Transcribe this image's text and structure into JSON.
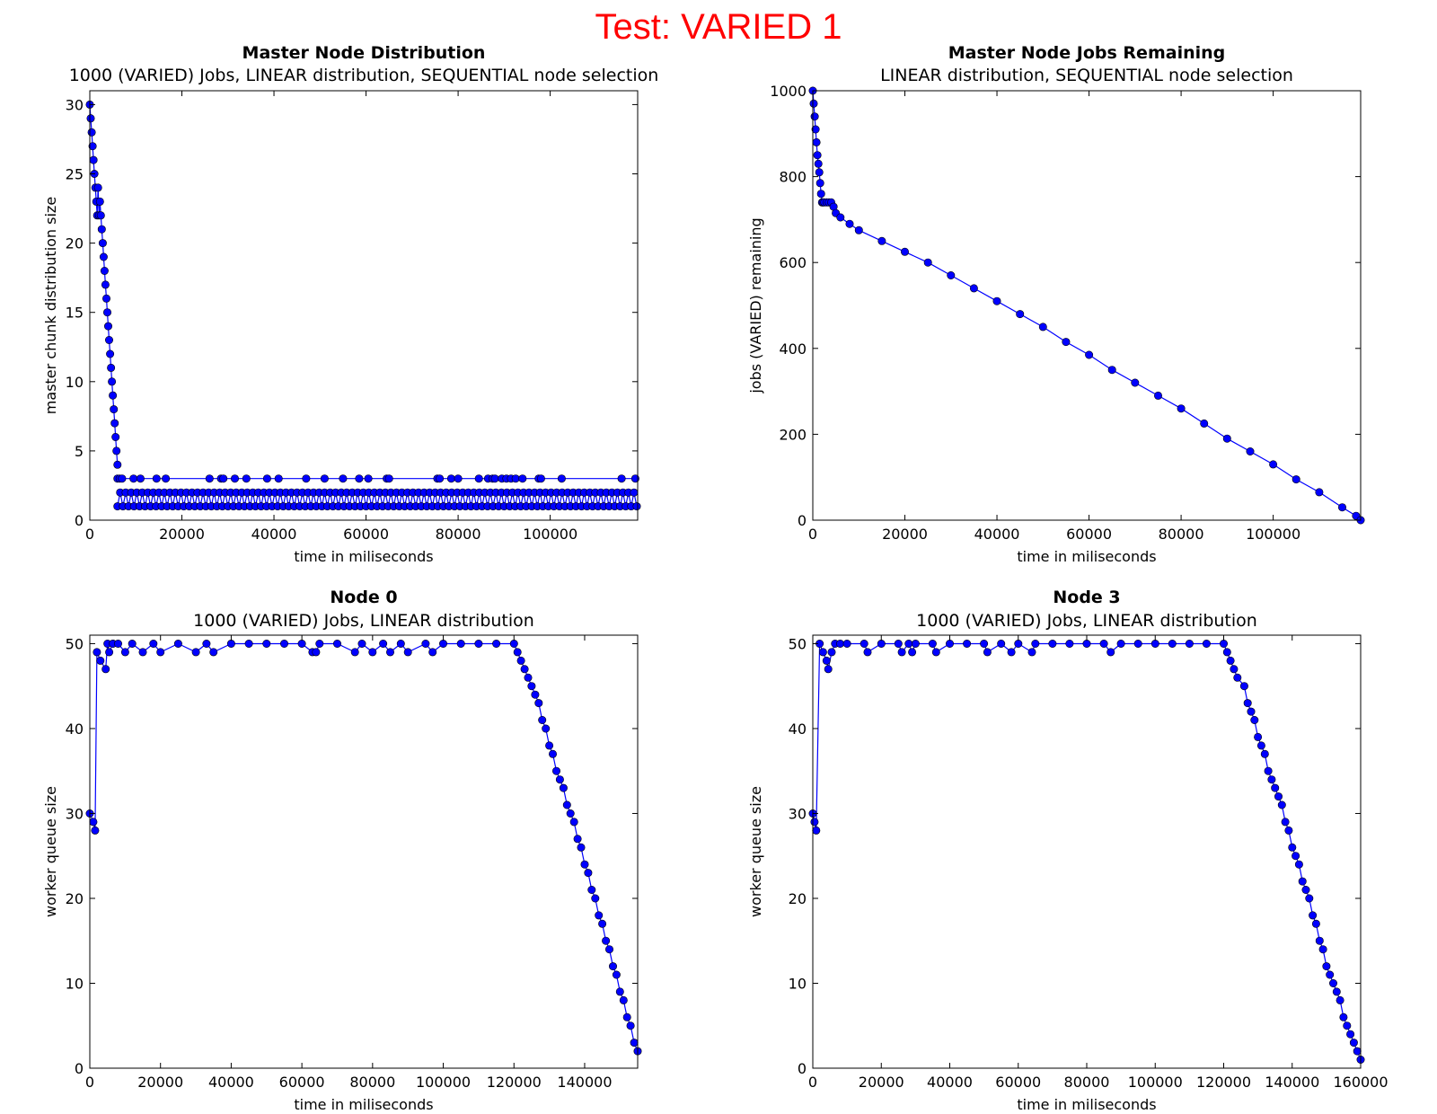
{
  "figure": {
    "suptitle": "Test: VARIED 1",
    "suptitle_color": "#ff0000",
    "marker_color": "#0000ff"
  },
  "chart_data": [
    {
      "type": "line",
      "title": "Master Node Distribution",
      "subtitle": "1000 (VARIED) Jobs, LINEAR distribution, SEQUENTIAL node selection",
      "xlabel": "time in miliseconds",
      "ylabel": "master chunk distribution size",
      "xlim": [
        0,
        119000
      ],
      "ylim": [
        0,
        31
      ],
      "xticks": [
        0,
        20000,
        40000,
        60000,
        80000,
        100000
      ],
      "yticks": [
        0,
        5,
        10,
        15,
        20,
        25,
        30
      ],
      "series": [
        {
          "marker": "o",
          "x": [
            0,
            200,
            400,
            600,
            800,
            1000,
            1200,
            1400,
            1600,
            1800,
            2000,
            2200,
            2400,
            2600,
            2800,
            3000,
            3200,
            3400,
            3600,
            3800,
            4000,
            4200,
            4400,
            4600,
            4800,
            5000,
            5200,
            5400,
            5600,
            5800,
            6000
          ],
          "y": [
            30,
            29,
            28,
            27,
            26,
            25,
            24,
            23,
            22,
            24,
            22,
            23,
            22,
            21,
            20,
            19,
            18,
            17,
            16,
            15,
            14,
            13,
            12,
            11,
            10,
            9,
            8,
            7,
            6,
            5,
            4
          ]
        },
        {
          "marker": "o",
          "x": [
            6000,
            6500,
            7000,
            9500,
            11000,
            14500,
            16500,
            26000,
            28500,
            29000,
            31500,
            34000,
            38500,
            41000,
            47000,
            51000,
            55000,
            58500,
            60500,
            64500,
            65000,
            75500,
            76000,
            78500,
            80000,
            84500,
            86500,
            87500,
            88000,
            89500,
            90500,
            91500,
            92500,
            94000,
            97500,
            98000,
            102500,
            115500,
            118500
          ],
          "y": [
            3,
            3,
            3,
            3,
            3,
            3,
            3,
            3,
            3,
            3,
            3,
            3,
            3,
            3,
            3,
            3,
            3,
            3,
            3,
            3,
            3,
            3,
            3,
            3,
            3,
            3,
            3,
            3,
            3,
            3,
            3,
            3,
            3,
            3,
            3,
            3,
            3,
            3,
            3
          ]
        },
        {
          "marker": "o",
          "note_level": "dense band of points at 1 and 2 from 6000 to 119000",
          "x_start": 6000,
          "x_end": 119000,
          "step": 600,
          "levels": [
            1,
            2
          ]
        }
      ]
    },
    {
      "type": "line",
      "title": "Master Node Jobs Remaining",
      "subtitle": "LINEAR distribution, SEQUENTIAL node selection",
      "xlabel": "time in miliseconds",
      "ylabel": "jobs (VARIED) remaining",
      "xlim": [
        0,
        119000
      ],
      "ylim": [
        0,
        1000
      ],
      "xticks": [
        0,
        20000,
        40000,
        60000,
        80000,
        100000
      ],
      "yticks": [
        0,
        200,
        400,
        600,
        800,
        1000
      ],
      "series": [
        {
          "marker": "o",
          "x": [
            0,
            200,
            400,
            600,
            800,
            1000,
            1200,
            1400,
            1600,
            1800,
            2000,
            2200,
            2500,
            3000,
            3500,
            4000,
            4500,
            5000,
            6000,
            8000,
            10000,
            15000,
            20000,
            25000,
            30000,
            35000,
            40000,
            45000,
            50000,
            55000,
            60000,
            65000,
            70000,
            75000,
            80000,
            85000,
            90000,
            95000,
            100000,
            105000,
            110000,
            115000,
            118000,
            119000
          ],
          "y": [
            1000,
            970,
            940,
            910,
            880,
            850,
            830,
            810,
            785,
            760,
            740,
            740,
            740,
            740,
            740,
            740,
            730,
            715,
            705,
            690,
            675,
            650,
            625,
            600,
            570,
            540,
            510,
            480,
            450,
            415,
            385,
            350,
            320,
            290,
            260,
            225,
            190,
            160,
            130,
            95,
            65,
            30,
            10,
            0
          ]
        }
      ]
    },
    {
      "type": "line",
      "title": "Node 0",
      "subtitle": "1000 (VARIED) Jobs, LINEAR distribution",
      "xlabel": "time in miliseconds",
      "ylabel": "worker queue size",
      "xlim": [
        0,
        155000
      ],
      "ylim": [
        0,
        51
      ],
      "xticks": [
        0,
        20000,
        40000,
        60000,
        80000,
        100000,
        120000,
        140000
      ],
      "yticks": [
        0,
        10,
        20,
        30,
        40,
        50
      ],
      "series": [
        {
          "marker": "o",
          "x": [
            0,
            1000,
            1500,
            2000,
            3000,
            4500,
            5000,
            5500,
            6500,
            8000,
            10000,
            12000,
            15000,
            18000,
            20000,
            25000,
            30000,
            33000,
            35000,
            40000,
            45000,
            50000,
            55000,
            60000,
            63000,
            64000,
            65000,
            70000,
            75000,
            77000,
            80000,
            83000,
            85000,
            88000,
            90000,
            95000,
            97000,
            100000,
            105000,
            110000,
            115000,
            120000,
            121000,
            122000,
            123000,
            124000,
            125000,
            126000,
            127000,
            128000,
            129000,
            130000,
            131000,
            132000,
            133000,
            134000,
            135000,
            136000,
            137000,
            138000,
            139000,
            140000,
            141000,
            142000,
            143000,
            144000,
            145000,
            146000,
            147000,
            148000,
            149000,
            150000,
            151000,
            152000,
            153000,
            154000,
            155000
          ],
          "y": [
            30,
            29,
            28,
            49,
            48,
            47,
            50,
            49,
            50,
            50,
            49,
            50,
            49,
            50,
            49,
            50,
            49,
            50,
            49,
            50,
            50,
            50,
            50,
            50,
            49,
            49,
            50,
            50,
            49,
            50,
            49,
            50,
            49,
            50,
            49,
            50,
            49,
            50,
            50,
            50,
            50,
            50,
            49,
            48,
            47,
            46,
            45,
            44,
            43,
            41,
            40,
            38,
            37,
            35,
            34,
            33,
            31,
            30,
            29,
            27,
            26,
            24,
            23,
            21,
            20,
            18,
            17,
            15,
            14,
            12,
            11,
            9,
            8,
            6,
            5,
            3,
            2
          ]
        }
      ]
    },
    {
      "type": "line",
      "title": "Node 3",
      "subtitle": "1000 (VARIED) Jobs, LINEAR distribution",
      "xlabel": "time in miliseconds",
      "ylabel": "worker queue size",
      "xlim": [
        0,
        160000
      ],
      "ylim": [
        0,
        51
      ],
      "xticks": [
        0,
        20000,
        40000,
        60000,
        80000,
        100000,
        120000,
        140000,
        160000
      ],
      "yticks": [
        0,
        10,
        20,
        30,
        40,
        50
      ],
      "series": [
        {
          "marker": "o",
          "x": [
            0,
            500,
            1000,
            2000,
            3000,
            4000,
            4500,
            5500,
            6500,
            8000,
            10000,
            15000,
            16000,
            20000,
            25000,
            26000,
            28000,
            29000,
            30000,
            35000,
            36000,
            40000,
            45000,
            50000,
            51000,
            55000,
            58000,
            60000,
            64000,
            65000,
            70000,
            75000,
            80000,
            85000,
            87000,
            90000,
            95000,
            100000,
            105000,
            110000,
            115000,
            120000,
            121000,
            122000,
            123000,
            124000,
            126000,
            127000,
            128000,
            129000,
            130000,
            131000,
            132000,
            133000,
            134000,
            135000,
            136000,
            137000,
            138000,
            139000,
            140000,
            141000,
            142000,
            143000,
            144000,
            145000,
            146000,
            147000,
            148000,
            149000,
            150000,
            151000,
            152000,
            153000,
            154000,
            155000,
            156000,
            157000,
            158000,
            159000,
            160000
          ],
          "y": [
            30,
            29,
            28,
            50,
            49,
            48,
            47,
            49,
            50,
            50,
            50,
            50,
            49,
            50,
            50,
            49,
            50,
            49,
            50,
            50,
            49,
            50,
            50,
            50,
            49,
            50,
            49,
            50,
            49,
            50,
            50,
            50,
            50,
            50,
            49,
            50,
            50,
            50,
            50,
            50,
            50,
            50,
            49,
            48,
            47,
            46,
            45,
            43,
            42,
            41,
            39,
            38,
            37,
            35,
            34,
            33,
            32,
            31,
            29,
            28,
            26,
            25,
            24,
            22,
            21,
            20,
            18,
            17,
            15,
            14,
            12,
            11,
            10,
            9,
            8,
            6,
            5,
            4,
            3,
            2,
            1
          ]
        }
      ]
    }
  ]
}
